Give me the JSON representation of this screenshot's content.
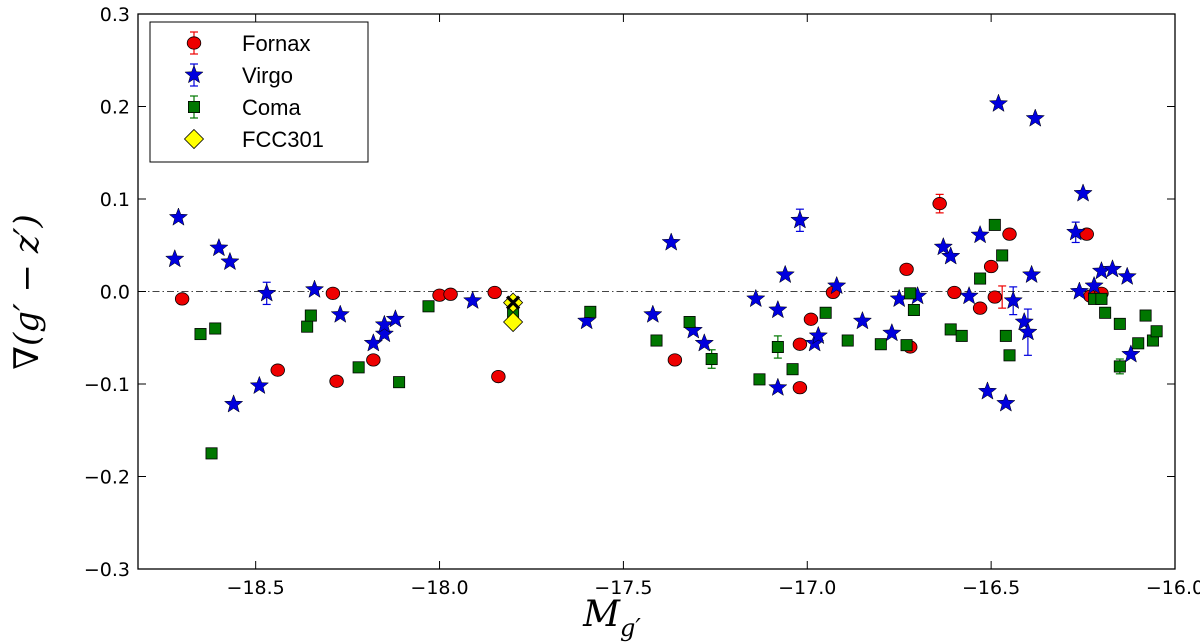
{
  "chart_data": {
    "type": "scatter",
    "title": "",
    "xlabel": "M_g'",
    "ylabel": "∇(g' − z')",
    "xlim": [
      -18.82,
      -16.0
    ],
    "ylim": [
      -0.3,
      0.3
    ],
    "xticks": [
      -18.5,
      -18.0,
      -17.5,
      -17.0,
      -16.5,
      -16.0
    ],
    "xtick_labels": [
      "−18.5",
      "−18.0",
      "−17.5",
      "−17.0",
      "−16.5",
      "−16.0"
    ],
    "yticks": [
      -0.3,
      -0.2,
      -0.1,
      0.0,
      0.1,
      0.2,
      0.3
    ],
    "ytick_labels": [
      "−0.3",
      "−0.2",
      "−0.1",
      "0.0",
      "0.1",
      "0.2",
      "0.3"
    ],
    "reference_line": {
      "y": 0.0,
      "style": "dash-dot"
    },
    "legend_position": "top-left",
    "series": [
      {
        "name": "Fornax",
        "marker": "circle",
        "color": "#ee0000",
        "points": [
          [
            -18.7,
            -0.008
          ],
          [
            -18.44,
            -0.085
          ],
          [
            -18.29,
            -0.002
          ],
          [
            -18.28,
            -0.097
          ],
          [
            -18.18,
            -0.074
          ],
          [
            -18.0,
            -0.004
          ],
          [
            -17.97,
            -0.003
          ],
          [
            -17.85,
            -0.001
          ],
          [
            -17.84,
            -0.092
          ],
          [
            -17.36,
            -0.074
          ],
          [
            -17.02,
            -0.104
          ],
          [
            -17.02,
            -0.057
          ],
          [
            -16.99,
            -0.03
          ],
          [
            -16.93,
            -0.001
          ],
          [
            -16.73,
            0.024
          ],
          [
            -16.72,
            -0.06
          ],
          [
            -16.64,
            0.095
          ],
          [
            -16.6,
            -0.001
          ],
          [
            -16.53,
            -0.018
          ],
          [
            -16.5,
            0.027
          ],
          [
            -16.49,
            -0.006
          ],
          [
            -16.45,
            0.062
          ],
          [
            -16.24,
            0.062
          ],
          [
            -16.23,
            -0.005
          ],
          [
            -16.2,
            -0.002
          ]
        ]
      },
      {
        "name": "Virgo",
        "marker": "star",
        "color": "#0000dd",
        "points": [
          [
            -18.71,
            0.08
          ],
          [
            -18.72,
            0.035
          ],
          [
            -18.6,
            0.047
          ],
          [
            -18.57,
            0.032
          ],
          [
            -18.56,
            -0.122
          ],
          [
            -18.49,
            -0.102
          ],
          [
            -18.47,
            -0.002
          ],
          [
            -18.34,
            0.002
          ],
          [
            -18.27,
            -0.025
          ],
          [
            -18.18,
            -0.056
          ],
          [
            -18.15,
            -0.046
          ],
          [
            -18.15,
            -0.036
          ],
          [
            -18.12,
            -0.03
          ],
          [
            -17.91,
            -0.01
          ],
          [
            -17.6,
            -0.032
          ],
          [
            -17.42,
            -0.025
          ],
          [
            -17.37,
            0.053
          ],
          [
            -17.31,
            -0.042
          ],
          [
            -17.28,
            -0.056
          ],
          [
            -17.14,
            -0.008
          ],
          [
            -17.08,
            -0.02
          ],
          [
            -17.08,
            -0.104
          ],
          [
            -17.06,
            0.018
          ],
          [
            -17.02,
            0.077
          ],
          [
            -16.98,
            -0.056
          ],
          [
            -16.97,
            -0.048
          ],
          [
            -16.92,
            0.006
          ],
          [
            -16.85,
            -0.032
          ],
          [
            -16.77,
            -0.045
          ],
          [
            -16.75,
            -0.008
          ],
          [
            -16.7,
            -0.005
          ],
          [
            -16.63,
            0.048
          ],
          [
            -16.61,
            0.038
          ],
          [
            -16.56,
            -0.005
          ],
          [
            -16.53,
            0.061
          ],
          [
            -16.51,
            -0.108
          ],
          [
            -16.48,
            0.203
          ],
          [
            -16.46,
            -0.121
          ],
          [
            -16.44,
            -0.01
          ],
          [
            -16.41,
            -0.033
          ],
          [
            -16.4,
            -0.044
          ],
          [
            -16.39,
            0.018
          ],
          [
            -16.38,
            0.187
          ],
          [
            -16.27,
            0.064
          ],
          [
            -16.26,
            0.0
          ],
          [
            -16.25,
            0.106
          ],
          [
            -16.22,
            0.006
          ],
          [
            -16.2,
            0.022
          ],
          [
            -16.17,
            0.024
          ],
          [
            -16.13,
            0.016
          ],
          [
            -16.12,
            -0.068
          ]
        ]
      },
      {
        "name": "Coma",
        "marker": "square",
        "color": "#007700",
        "points": [
          [
            -18.65,
            -0.046
          ],
          [
            -18.61,
            -0.04
          ],
          [
            -18.62,
            -0.175
          ],
          [
            -18.36,
            -0.038
          ],
          [
            -18.35,
            -0.026
          ],
          [
            -18.22,
            -0.082
          ],
          [
            -18.11,
            -0.098
          ],
          [
            -18.03,
            -0.016
          ],
          [
            -17.8,
            -0.022
          ],
          [
            -17.59,
            -0.022
          ],
          [
            -17.41,
            -0.053
          ],
          [
            -17.32,
            -0.033
          ],
          [
            -17.26,
            -0.073
          ],
          [
            -17.13,
            -0.095
          ],
          [
            -17.08,
            -0.06
          ],
          [
            -17.04,
            -0.084
          ],
          [
            -16.95,
            -0.023
          ],
          [
            -16.89,
            -0.053
          ],
          [
            -16.8,
            -0.057
          ],
          [
            -16.73,
            -0.058
          ],
          [
            -16.72,
            -0.002
          ],
          [
            -16.71,
            -0.02
          ],
          [
            -16.61,
            -0.041
          ],
          [
            -16.58,
            -0.048
          ],
          [
            -16.53,
            0.014
          ],
          [
            -16.49,
            0.072
          ],
          [
            -16.47,
            0.039
          ],
          [
            -16.46,
            -0.048
          ],
          [
            -16.45,
            -0.069
          ],
          [
            -16.22,
            -0.008
          ],
          [
            -16.2,
            -0.008
          ],
          [
            -16.19,
            -0.023
          ],
          [
            -16.15,
            -0.035
          ],
          [
            -16.15,
            -0.081
          ],
          [
            -16.1,
            -0.056
          ],
          [
            -16.08,
            -0.026
          ],
          [
            -16.06,
            -0.053
          ],
          [
            -16.05,
            -0.043
          ]
        ]
      },
      {
        "name": "FCC301",
        "marker": "diamond",
        "color": "#ffff00",
        "points": [
          [
            -17.8,
            -0.012
          ],
          [
            -17.8,
            -0.033
          ]
        ]
      }
    ],
    "cross_marker": {
      "x": -17.8,
      "y": -0.012
    },
    "error_bars": [
      {
        "x": -16.64,
        "y": 0.095,
        "err": 0.01,
        "series": "Fornax"
      },
      {
        "x": -16.47,
        "y": -0.006,
        "err": 0.012,
        "series": "Fornax"
      },
      {
        "x": -17.02,
        "y": 0.077,
        "err": 0.012,
        "series": "Virgo"
      },
      {
        "x": -16.44,
        "y": -0.01,
        "err": 0.015,
        "series": "Virgo"
      },
      {
        "x": -16.4,
        "y": -0.044,
        "err": 0.025,
        "series": "Virgo"
      },
      {
        "x": -16.27,
        "y": 0.064,
        "err": 0.011,
        "series": "Virgo"
      },
      {
        "x": -18.47,
        "y": -0.002,
        "err": 0.012,
        "series": "Virgo"
      },
      {
        "x": -17.26,
        "y": -0.073,
        "err": 0.01,
        "series": "Coma"
      },
      {
        "x": -17.08,
        "y": -0.06,
        "err": 0.012,
        "series": "Coma"
      },
      {
        "x": -16.15,
        "y": -0.081,
        "err": 0.008,
        "series": "Coma"
      }
    ],
    "legend": [
      {
        "label": "Fornax",
        "marker": "circle",
        "color": "#ee0000"
      },
      {
        "label": "Virgo",
        "marker": "star",
        "color": "#0000dd"
      },
      {
        "label": "Coma",
        "marker": "square",
        "color": "#007700"
      },
      {
        "label": "FCC301",
        "marker": "diamond",
        "color": "#ffff00"
      }
    ]
  }
}
